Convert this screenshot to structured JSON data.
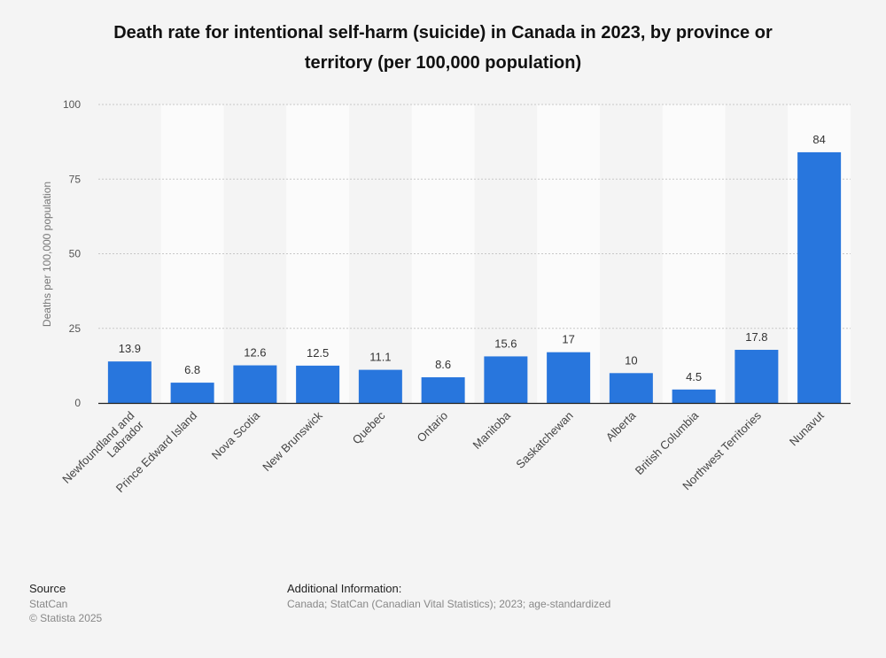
{
  "chart_data": {
    "type": "bar",
    "title": "Death rate for intentional self-harm (suicide) in Canada in 2023, by province or territory (per 100,000 population)",
    "xlabel": "",
    "ylabel": "Deaths per 100,000 population",
    "ylim": [
      0,
      100
    ],
    "yticks": [
      0,
      25,
      50,
      75,
      100
    ],
    "grid": true,
    "categories": [
      "Newfoundland and Labrador",
      "Prince Edward Island",
      "Nova Scotia",
      "New Brunswick",
      "Quebec",
      "Ontario",
      "Manitoba",
      "Saskatchewan",
      "Alberta",
      "British Columbia",
      "Northwest Territories",
      "Nunavut"
    ],
    "values": [
      13.9,
      6.8,
      12.6,
      12.5,
      11.1,
      8.6,
      15.6,
      17,
      10,
      4.5,
      17.8,
      84
    ],
    "bar_color": "#2876dd"
  },
  "footer": {
    "source_heading": "Source",
    "source_text": "StatCan",
    "copyright": "© Statista 2025",
    "info_heading": "Additional Information:",
    "info_text": "Canada; StatCan (Canadian Vital Statistics); 2023; age-standardized"
  }
}
